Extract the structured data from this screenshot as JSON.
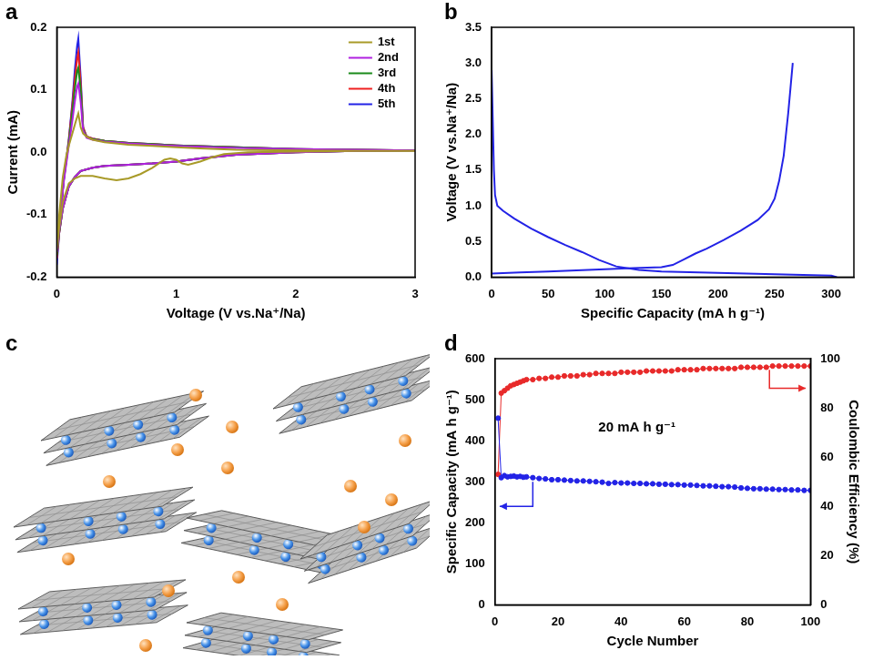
{
  "chart_data": [
    {
      "panel": "a",
      "type": "line",
      "x_label": "Voltage (V vs.Na⁺/Na)",
      "y_label": "Current (mA)",
      "xlim": [
        0,
        3
      ],
      "xticks": [
        0,
        1,
        2,
        3
      ],
      "ylim": [
        -0.2,
        0.2
      ],
      "yticks": [
        -0.2,
        -0.1,
        {
          "value": 0,
          "label": "0.0"
        },
        0.1,
        0.2
      ],
      "grid": false,
      "legend": "upper right",
      "series": [
        {
          "name": "1st",
          "color": "#a89a28",
          "x": [
            3,
            2.5,
            2,
            1.6,
            1.4,
            1.3,
            1.2,
            1.1,
            1.05,
            1.0,
            0.95,
            0.9,
            0.8,
            0.7,
            0.6,
            0.5,
            0.4,
            0.3,
            0.2,
            0.15,
            0.1,
            0.05,
            0.02,
            0.0,
            0.02,
            0.05,
            0.08,
            0.1,
            0.13,
            0.16,
            0.18,
            0.2,
            0.22,
            0.25,
            0.3,
            0.4,
            0.6,
            0.8,
            1.0,
            1.2,
            1.5,
            2.0,
            2.5,
            3
          ],
          "values": [
            0.002,
            0.002,
            0.001,
            0.0,
            -0.003,
            -0.008,
            -0.015,
            -0.02,
            -0.018,
            -0.012,
            -0.01,
            -0.012,
            -0.025,
            -0.035,
            -0.042,
            -0.045,
            -0.042,
            -0.038,
            -0.038,
            -0.042,
            -0.05,
            -0.08,
            -0.12,
            -0.155,
            -0.1,
            -0.04,
            -0.005,
            0.01,
            0.03,
            0.05,
            0.062,
            0.04,
            0.03,
            0.025,
            0.02,
            0.016,
            0.012,
            0.01,
            0.008,
            0.006,
            0.004,
            0.003,
            0.002,
            0.002
          ]
        },
        {
          "name": "2nd",
          "color": "#b020e0",
          "x": [
            3,
            2.5,
            2,
            1.5,
            1.2,
            1.0,
            0.8,
            0.6,
            0.4,
            0.3,
            0.2,
            0.15,
            0.1,
            0.05,
            0.02,
            0.0,
            0.03,
            0.06,
            0.1,
            0.13,
            0.15,
            0.17,
            0.18,
            0.2,
            0.22,
            0.25,
            0.3,
            0.4,
            0.6,
            0.8,
            1.0,
            1.5,
            2.0,
            2.5,
            3
          ],
          "values": [
            0.003,
            0.002,
            0.0,
            -0.004,
            -0.01,
            -0.015,
            -0.018,
            -0.02,
            -0.022,
            -0.025,
            -0.03,
            -0.04,
            -0.055,
            -0.09,
            -0.125,
            -0.16,
            -0.1,
            -0.045,
            0.01,
            0.05,
            0.08,
            0.105,
            0.11,
            0.08,
            0.035,
            0.023,
            0.02,
            0.017,
            0.014,
            0.012,
            0.01,
            0.007,
            0.005,
            0.004,
            0.003
          ]
        },
        {
          "name": "3rd",
          "color": "#1a8a1a",
          "x": [
            3,
            2.5,
            2,
            1.5,
            1.2,
            1.0,
            0.8,
            0.6,
            0.4,
            0.3,
            0.2,
            0.15,
            0.1,
            0.05,
            0.02,
            0.0,
            0.03,
            0.06,
            0.1,
            0.13,
            0.15,
            0.17,
            0.18,
            0.2,
            0.22,
            0.25,
            0.3,
            0.4,
            0.6,
            0.8,
            1.0,
            1.5,
            2.0,
            2.5,
            3
          ],
          "values": [
            0.003,
            0.002,
            0.0,
            -0.004,
            -0.01,
            -0.015,
            -0.018,
            -0.02,
            -0.022,
            -0.025,
            -0.03,
            -0.04,
            -0.055,
            -0.09,
            -0.128,
            -0.165,
            -0.1,
            -0.042,
            0.015,
            0.065,
            0.1,
            0.13,
            0.135,
            0.1,
            0.037,
            0.024,
            0.021,
            0.018,
            0.015,
            0.013,
            0.011,
            0.008,
            0.005,
            0.004,
            0.003
          ]
        },
        {
          "name": "4th",
          "color": "#ee2020",
          "x": [
            3,
            2.5,
            2,
            1.5,
            1.2,
            1.0,
            0.8,
            0.6,
            0.4,
            0.3,
            0.2,
            0.15,
            0.1,
            0.05,
            0.02,
            0.0,
            0.03,
            0.06,
            0.1,
            0.13,
            0.15,
            0.17,
            0.18,
            0.2,
            0.22,
            0.25,
            0.3,
            0.4,
            0.6,
            0.8,
            1.0,
            1.5,
            2.0,
            2.5,
            3
          ],
          "values": [
            0.003,
            0.002,
            0.0,
            -0.004,
            -0.01,
            -0.015,
            -0.018,
            -0.02,
            -0.022,
            -0.025,
            -0.03,
            -0.04,
            -0.055,
            -0.09,
            -0.13,
            -0.17,
            -0.1,
            -0.04,
            0.018,
            0.075,
            0.115,
            0.15,
            0.16,
            0.11,
            0.04,
            0.025,
            0.022,
            0.018,
            0.015,
            0.013,
            0.011,
            0.008,
            0.005,
            0.004,
            0.003
          ]
        },
        {
          "name": "5th",
          "color": "#2323e6",
          "x": [
            3,
            2.5,
            2,
            1.5,
            1.2,
            1.0,
            0.8,
            0.6,
            0.4,
            0.3,
            0.2,
            0.15,
            0.1,
            0.05,
            0.02,
            0.0,
            0.03,
            0.06,
            0.1,
            0.13,
            0.15,
            0.17,
            0.18,
            0.2,
            0.22,
            0.25,
            0.3,
            0.4,
            0.6,
            0.8,
            1.0,
            1.5,
            2.0,
            2.5,
            3
          ],
          "values": [
            0.003,
            0.002,
            0.0,
            -0.004,
            -0.01,
            -0.015,
            -0.018,
            -0.02,
            -0.022,
            -0.025,
            -0.03,
            -0.04,
            -0.055,
            -0.09,
            -0.13,
            -0.18,
            -0.1,
            -0.04,
            0.02,
            0.08,
            0.13,
            0.17,
            0.182,
            0.12,
            0.04,
            0.025,
            0.022,
            0.018,
            0.015,
            0.013,
            0.011,
            0.008,
            0.005,
            0.004,
            0.003
          ]
        }
      ]
    },
    {
      "panel": "b",
      "type": "line",
      "x_label": "Specific Capacity (mA h g⁻¹)",
      "y_label": "Voltage (V vs.Na⁺/Na)",
      "xlim": [
        0,
        320
      ],
      "xticks": [
        0,
        50,
        100,
        150,
        200,
        250,
        300
      ],
      "ylim": [
        0,
        3.5
      ],
      "yticks": [
        {
          "value": 0,
          "label": "0.0"
        },
        0.5,
        {
          "value": 1,
          "label": "1.0"
        },
        1.5,
        {
          "value": 2,
          "label": "2.0"
        },
        2.5,
        {
          "value": 3,
          "label": "3.0"
        },
        3.5
      ],
      "grid": false,
      "series": [
        {
          "color": "#2323e6",
          "x": [
            0,
            1,
            2,
            3,
            5,
            10,
            20,
            35,
            50,
            65,
            80,
            95,
            110,
            130,
            150,
            175,
            200,
            225,
            250,
            275,
            300,
            305
          ],
          "values": [
            2.9,
            2.2,
            1.5,
            1.15,
            1.0,
            0.93,
            0.82,
            0.68,
            0.56,
            0.45,
            0.35,
            0.24,
            0.15,
            0.1,
            0.08,
            0.07,
            0.06,
            0.05,
            0.04,
            0.03,
            0.02,
            0.0
          ]
        },
        {
          "color": "#2323e6",
          "x": [
            0,
            25,
            50,
            75,
            100,
            125,
            150,
            160,
            170,
            180,
            190,
            205,
            220,
            235,
            245,
            250,
            254,
            258,
            262,
            264,
            266
          ],
          "values": [
            0.05,
            0.065,
            0.08,
            0.095,
            0.11,
            0.125,
            0.14,
            0.17,
            0.25,
            0.33,
            0.4,
            0.52,
            0.65,
            0.8,
            0.95,
            1.1,
            1.35,
            1.7,
            2.3,
            2.65,
            3.0
          ]
        }
      ]
    },
    {
      "panel": "c",
      "type": "diagram"
    },
    {
      "panel": "d",
      "type": "line",
      "x_label": "Cycle Number",
      "y_label": "Specific Capacity (mA h g⁻¹)",
      "y2_label": "Coulombic Efficiency (%)",
      "annotation": "20 mA h g⁻¹",
      "xlim": [
        0,
        100
      ],
      "xticks": [
        0,
        20,
        40,
        60,
        80,
        100
      ],
      "ylim": [
        0,
        600
      ],
      "yticks": [
        0,
        100,
        200,
        300,
        400,
        500,
        600
      ],
      "y2lim": [
        0,
        100
      ],
      "y2ticks": [
        0,
        20,
        40,
        60,
        80,
        100
      ],
      "grid": false,
      "x": [
        1,
        2,
        3,
        4,
        5,
        6,
        7,
        8,
        9,
        10,
        12,
        14,
        16,
        18,
        20,
        22,
        24,
        26,
        28,
        30,
        32,
        34,
        36,
        38,
        40,
        42,
        44,
        46,
        48,
        50,
        52,
        54,
        56,
        58,
        60,
        62,
        64,
        66,
        68,
        70,
        72,
        74,
        76,
        78,
        80,
        82,
        84,
        86,
        88,
        90,
        92,
        94,
        96,
        98,
        100
      ],
      "series": [
        {
          "color": "#2323e6",
          "marker": "circle",
          "values": [
            455,
            310,
            315,
            312,
            313,
            314,
            312,
            313,
            311,
            312,
            310,
            308,
            307,
            305,
            305,
            304,
            303,
            302,
            302,
            301,
            300,
            299,
            296,
            298,
            297,
            297,
            296,
            296,
            295,
            295,
            294,
            294,
            293,
            293,
            292,
            292,
            291,
            290,
            290,
            289,
            288,
            288,
            287,
            285,
            284,
            283,
            283,
            282,
            282,
            281,
            281,
            280,
            280,
            279,
            279
          ]
        },
        {
          "color": "#e82a2a",
          "marker": "circle",
          "axis": "y2",
          "values": [
            53,
            86,
            87,
            88,
            89,
            89.5,
            90,
            90.5,
            91,
            91.5,
            91.5,
            92,
            92,
            92.5,
            92.5,
            93,
            93,
            93,
            93.5,
            93.5,
            94,
            94,
            94,
            94,
            94.5,
            94.5,
            94.5,
            94.5,
            95,
            95,
            95,
            95,
            95,
            95.5,
            95.5,
            95.5,
            95.5,
            96,
            96,
            96,
            96,
            96,
            96,
            96.5,
            96.5,
            96.5,
            96.5,
            96.5,
            97,
            97,
            97,
            97,
            97,
            97,
            97
          ]
        }
      ]
    }
  ]
}
